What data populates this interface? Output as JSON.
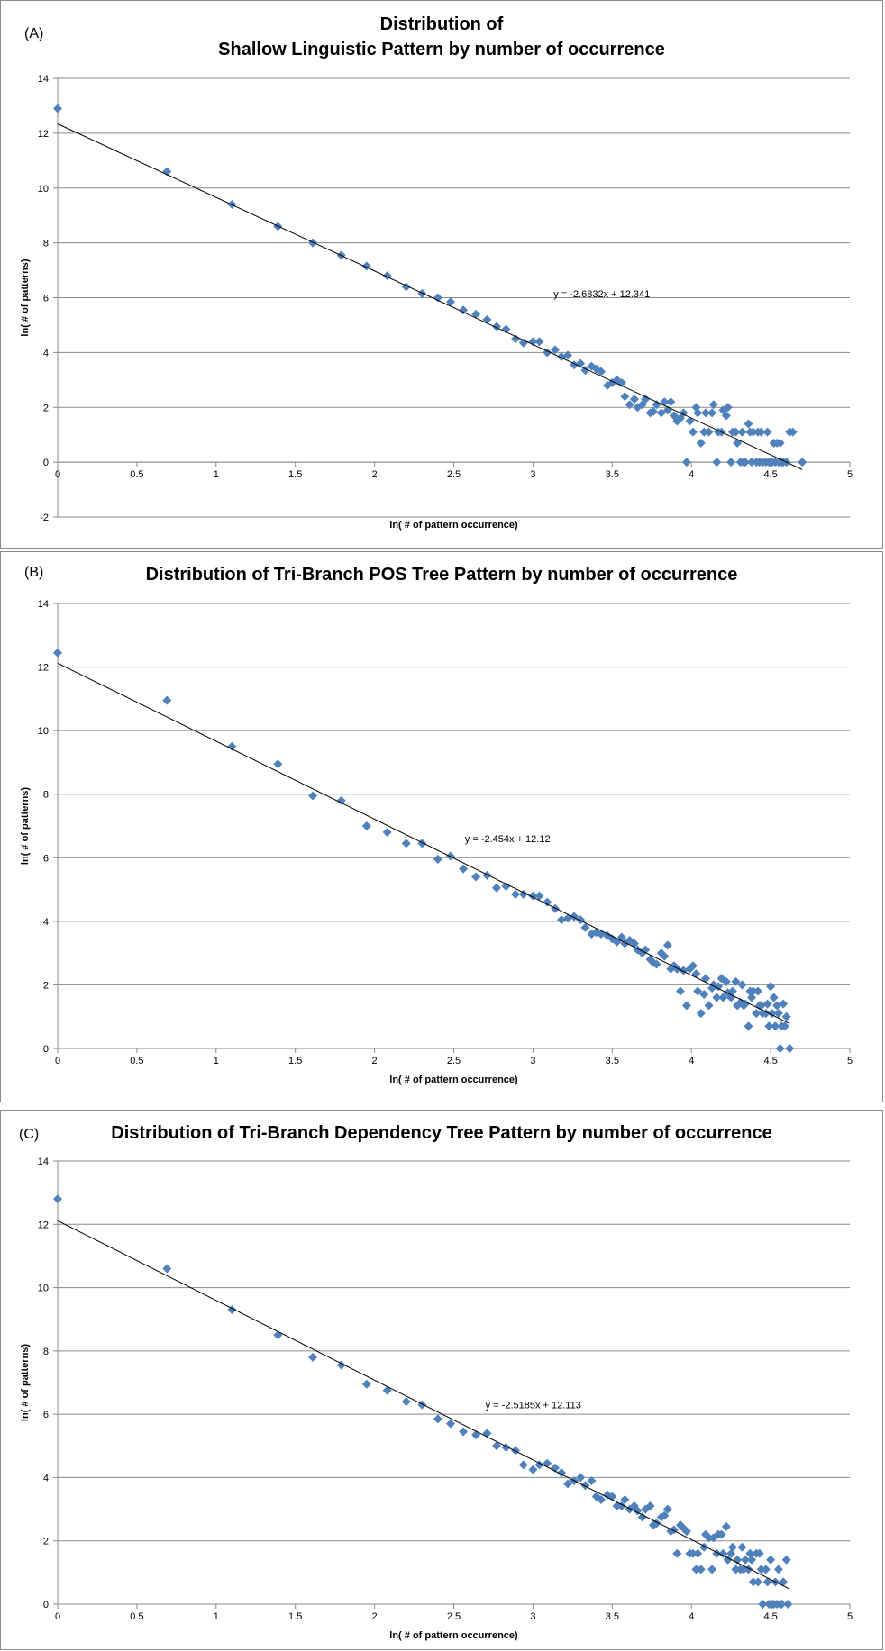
{
  "chart_data": [
    {
      "type": "scatter",
      "panel_label": "(A)",
      "title_lines": [
        "Distribution of",
        "Shallow Linguistic Pattern by number of occurrence"
      ],
      "xlabel": "ln( # of pattern occurrence)",
      "ylabel": "ln( # of patterns)",
      "xlim": [
        0,
        5
      ],
      "ylim": [
        -2,
        14
      ],
      "x_ticks": [
        "0",
        "0.5",
        "1",
        "1.5",
        "2",
        "2.5",
        "3",
        "3.5",
        "4",
        "4.5",
        "5"
      ],
      "y_ticks": [
        "-2",
        "0",
        "2",
        "4",
        "6",
        "8",
        "10",
        "12",
        "14"
      ],
      "grid": "horizontal",
      "marker_color": "#4f81bd",
      "trendline": {
        "slope": -2.6832,
        "intercept": 12.341,
        "x_range": [
          0,
          4.7
        ],
        "label": "y = -2.6832x + 12.341"
      },
      "points": [
        [
          0,
          12.9
        ],
        [
          0.69,
          10.6
        ],
        [
          1.1,
          9.4
        ],
        [
          1.39,
          8.6
        ],
        [
          1.61,
          8.0
        ],
        [
          1.79,
          7.55
        ],
        [
          1.95,
          7.15
        ],
        [
          2.08,
          6.8
        ],
        [
          2.2,
          6.4
        ],
        [
          2.3,
          6.15
        ],
        [
          2.4,
          6.0
        ],
        [
          2.48,
          5.85
        ],
        [
          2.56,
          5.55
        ],
        [
          2.64,
          5.4
        ],
        [
          2.71,
          5.2
        ],
        [
          2.77,
          4.95
        ],
        [
          2.83,
          4.85
        ],
        [
          2.89,
          4.5
        ],
        [
          2.94,
          4.35
        ],
        [
          3.0,
          4.4
        ],
        [
          3.04,
          4.4
        ],
        [
          3.09,
          4.0
        ],
        [
          3.14,
          4.1
        ],
        [
          3.18,
          3.85
        ],
        [
          3.22,
          3.9
        ],
        [
          3.26,
          3.55
        ],
        [
          3.3,
          3.6
        ],
        [
          3.33,
          3.35
        ],
        [
          3.37,
          3.5
        ],
        [
          3.4,
          3.4
        ],
        [
          3.43,
          3.3
        ],
        [
          3.47,
          2.8
        ],
        [
          3.5,
          2.9
        ],
        [
          3.53,
          3.0
        ],
        [
          3.56,
          2.9
        ],
        [
          3.58,
          2.4
        ],
        [
          3.61,
          2.1
        ],
        [
          3.64,
          2.3
        ],
        [
          3.66,
          2.0
        ],
        [
          3.69,
          2.1
        ],
        [
          3.71,
          2.3
        ],
        [
          3.74,
          1.8
        ],
        [
          3.76,
          1.85
        ],
        [
          3.78,
          2.1
        ],
        [
          3.81,
          1.8
        ],
        [
          3.83,
          2.2
        ],
        [
          3.85,
          1.9
        ],
        [
          3.87,
          2.2
        ],
        [
          3.89,
          1.7
        ],
        [
          3.91,
          1.5
        ],
        [
          3.93,
          1.6
        ],
        [
          3.95,
          1.8
        ],
        [
          3.97,
          0.0
        ],
        [
          3.99,
          1.5
        ],
        [
          4.01,
          1.1
        ],
        [
          4.03,
          2.0
        ],
        [
          4.04,
          1.8
        ],
        [
          4.06,
          0.7
        ],
        [
          4.08,
          1.1
        ],
        [
          4.09,
          1.8
        ],
        [
          4.11,
          1.1
        ],
        [
          4.13,
          1.8
        ],
        [
          4.14,
          2.1
        ],
        [
          4.16,
          0.0
        ],
        [
          4.17,
          1.1
        ],
        [
          4.19,
          1.1
        ],
        [
          4.2,
          1.9
        ],
        [
          4.22,
          1.7
        ],
        [
          4.23,
          2.0
        ],
        [
          4.25,
          0.0
        ],
        [
          4.26,
          1.1
        ],
        [
          4.28,
          1.1
        ],
        [
          4.29,
          0.7
        ],
        [
          4.31,
          0.0
        ],
        [
          4.32,
          1.1
        ],
        [
          4.33,
          0.0
        ],
        [
          4.34,
          0.0
        ],
        [
          4.36,
          1.4
        ],
        [
          4.37,
          1.1
        ],
        [
          4.38,
          0.0
        ],
        [
          4.39,
          1.1
        ],
        [
          4.41,
          0.0
        ],
        [
          4.42,
          1.1
        ],
        [
          4.43,
          0.0
        ],
        [
          4.44,
          1.1
        ],
        [
          4.45,
          0.0
        ],
        [
          4.47,
          0.0
        ],
        [
          4.48,
          1.1
        ],
        [
          4.49,
          0.0
        ],
        [
          4.5,
          0.0
        ],
        [
          4.51,
          0.0
        ],
        [
          4.52,
          0.7
        ],
        [
          4.53,
          0.0
        ],
        [
          4.54,
          0.7
        ],
        [
          4.55,
          0.0
        ],
        [
          4.56,
          0.7
        ],
        [
          4.57,
          0.0
        ],
        [
          4.58,
          0.0
        ],
        [
          4.6,
          0.0
        ],
        [
          4.62,
          1.1
        ],
        [
          4.64,
          1.1
        ],
        [
          4.7,
          0.0
        ]
      ]
    },
    {
      "type": "scatter",
      "panel_label": "(B)",
      "title_lines": [
        "Distribution of Tri-Branch POS Tree Pattern by number of occurrence"
      ],
      "xlabel": "ln( # of pattern occurrence)",
      "ylabel": "ln( # of patterns)",
      "xlim": [
        0,
        5
      ],
      "ylim": [
        0,
        14
      ],
      "x_ticks": [
        "0",
        "0.5",
        "1",
        "1.5",
        "2",
        "2.5",
        "3",
        "3.5",
        "4",
        "4.5",
        "5"
      ],
      "y_ticks": [
        "0",
        "2",
        "4",
        "6",
        "8",
        "10",
        "12",
        "14"
      ],
      "grid": "horizontal",
      "marker_color": "#4f81bd",
      "trendline": {
        "slope": -2.454,
        "intercept": 12.12,
        "x_range": [
          0,
          4.62
        ],
        "label": "y = -2.454x + 12.12"
      },
      "points": [
        [
          0,
          12.45
        ],
        [
          0.69,
          10.95
        ],
        [
          1.1,
          9.5
        ],
        [
          1.39,
          8.95
        ],
        [
          1.61,
          7.95
        ],
        [
          1.79,
          7.8
        ],
        [
          1.95,
          7.0
        ],
        [
          2.08,
          6.8
        ],
        [
          2.2,
          6.45
        ],
        [
          2.3,
          6.45
        ],
        [
          2.4,
          5.95
        ],
        [
          2.48,
          6.05
        ],
        [
          2.56,
          5.65
        ],
        [
          2.64,
          5.4
        ],
        [
          2.71,
          5.45
        ],
        [
          2.77,
          5.05
        ],
        [
          2.83,
          5.1
        ],
        [
          2.89,
          4.85
        ],
        [
          2.94,
          4.85
        ],
        [
          3.0,
          4.8
        ],
        [
          3.04,
          4.8
        ],
        [
          3.09,
          4.6
        ],
        [
          3.14,
          4.4
        ],
        [
          3.18,
          4.05
        ],
        [
          3.22,
          4.1
        ],
        [
          3.26,
          4.15
        ],
        [
          3.3,
          4.05
        ],
        [
          3.33,
          3.8
        ],
        [
          3.37,
          3.6
        ],
        [
          3.4,
          3.65
        ],
        [
          3.43,
          3.6
        ],
        [
          3.47,
          3.55
        ],
        [
          3.5,
          3.45
        ],
        [
          3.53,
          3.35
        ],
        [
          3.56,
          3.5
        ],
        [
          3.58,
          3.3
        ],
        [
          3.61,
          3.4
        ],
        [
          3.64,
          3.3
        ],
        [
          3.66,
          3.1
        ],
        [
          3.69,
          3.0
        ],
        [
          3.71,
          3.1
        ],
        [
          3.74,
          2.8
        ],
        [
          3.76,
          2.7
        ],
        [
          3.78,
          2.65
        ],
        [
          3.81,
          3.0
        ],
        [
          3.83,
          2.9
        ],
        [
          3.85,
          3.25
        ],
        [
          3.87,
          2.5
        ],
        [
          3.89,
          2.6
        ],
        [
          3.91,
          2.5
        ],
        [
          3.93,
          1.8
        ],
        [
          3.95,
          2.45
        ],
        [
          3.97,
          1.35
        ],
        [
          3.99,
          2.5
        ],
        [
          4.01,
          2.6
        ],
        [
          4.03,
          2.35
        ],
        [
          4.04,
          1.8
        ],
        [
          4.06,
          1.1
        ],
        [
          4.08,
          1.7
        ],
        [
          4.09,
          2.2
        ],
        [
          4.11,
          1.35
        ],
        [
          4.13,
          1.9
        ],
        [
          4.14,
          2.0
        ],
        [
          4.16,
          1.6
        ],
        [
          4.17,
          1.95
        ],
        [
          4.19,
          2.2
        ],
        [
          4.2,
          1.6
        ],
        [
          4.22,
          2.1
        ],
        [
          4.23,
          1.75
        ],
        [
          4.25,
          1.6
        ],
        [
          4.26,
          1.8
        ],
        [
          4.28,
          2.1
        ],
        [
          4.29,
          1.35
        ],
        [
          4.31,
          1.45
        ],
        [
          4.32,
          2.0
        ],
        [
          4.33,
          1.35
        ],
        [
          4.34,
          1.4
        ],
        [
          4.36,
          0.7
        ],
        [
          4.37,
          1.8
        ],
        [
          4.38,
          1.6
        ],
        [
          4.39,
          1.8
        ],
        [
          4.41,
          1.1
        ],
        [
          4.42,
          1.8
        ],
        [
          4.43,
          1.35
        ],
        [
          4.44,
          1.35
        ],
        [
          4.45,
          1.1
        ],
        [
          4.47,
          1.1
        ],
        [
          4.48,
          1.4
        ],
        [
          4.49,
          0.7
        ],
        [
          4.5,
          1.95
        ],
        [
          4.51,
          1.1
        ],
        [
          4.52,
          1.6
        ],
        [
          4.53,
          0.7
        ],
        [
          4.54,
          1.35
        ],
        [
          4.55,
          1.1
        ],
        [
          4.56,
          0.0
        ],
        [
          4.57,
          0.7
        ],
        [
          4.58,
          1.4
        ],
        [
          4.59,
          0.7
        ],
        [
          4.6,
          1.0
        ],
        [
          4.62,
          0.0
        ]
      ]
    },
    {
      "type": "scatter",
      "panel_label": "(C)",
      "title_lines": [
        "Distribution of Tri-Branch Dependency Tree Pattern by number of occurrence"
      ],
      "xlabel": "ln( # of pattern occurrence)",
      "ylabel": "ln( # of patterns)",
      "xlim": [
        0,
        5
      ],
      "ylim": [
        0,
        14
      ],
      "x_ticks": [
        "0",
        "0.5",
        "1",
        "1.5",
        "2",
        "2.5",
        "3",
        "3.5",
        "4",
        "4.5",
        "5"
      ],
      "y_ticks": [
        "0",
        "2",
        "4",
        "6",
        "8",
        "10",
        "12",
        "14"
      ],
      "grid": "horizontal",
      "marker_color": "#4f81bd",
      "trendline": {
        "slope": -2.5185,
        "intercept": 12.113,
        "x_range": [
          0,
          4.62
        ],
        "label": "y = -2.5185x + 12.113"
      },
      "points": [
        [
          0,
          12.8
        ],
        [
          0.69,
          10.6
        ],
        [
          1.1,
          9.3
        ],
        [
          1.39,
          8.5
        ],
        [
          1.61,
          7.8
        ],
        [
          1.79,
          7.55
        ],
        [
          1.95,
          6.95
        ],
        [
          2.08,
          6.75
        ],
        [
          2.2,
          6.4
        ],
        [
          2.3,
          6.3
        ],
        [
          2.4,
          5.85
        ],
        [
          2.48,
          5.7
        ],
        [
          2.56,
          5.45
        ],
        [
          2.64,
          5.35
        ],
        [
          2.71,
          5.4
        ],
        [
          2.77,
          5.0
        ],
        [
          2.83,
          4.95
        ],
        [
          2.89,
          4.85
        ],
        [
          2.94,
          4.4
        ],
        [
          3.0,
          4.25
        ],
        [
          3.04,
          4.4
        ],
        [
          3.09,
          4.45
        ],
        [
          3.14,
          4.3
        ],
        [
          3.18,
          4.15
        ],
        [
          3.22,
          3.8
        ],
        [
          3.26,
          3.9
        ],
        [
          3.3,
          4.0
        ],
        [
          3.33,
          3.75
        ],
        [
          3.37,
          3.9
        ],
        [
          3.4,
          3.4
        ],
        [
          3.43,
          3.3
        ],
        [
          3.47,
          3.45
        ],
        [
          3.5,
          3.4
        ],
        [
          3.53,
          3.1
        ],
        [
          3.56,
          3.1
        ],
        [
          3.58,
          3.3
        ],
        [
          3.61,
          3.0
        ],
        [
          3.64,
          3.1
        ],
        [
          3.66,
          2.95
        ],
        [
          3.69,
          2.75
        ],
        [
          3.71,
          3.0
        ],
        [
          3.74,
          3.1
        ],
        [
          3.76,
          2.5
        ],
        [
          3.78,
          2.55
        ],
        [
          3.81,
          2.75
        ],
        [
          3.83,
          2.8
        ],
        [
          3.85,
          3.0
        ],
        [
          3.87,
          2.3
        ],
        [
          3.89,
          2.35
        ],
        [
          3.91,
          1.6
        ],
        [
          3.93,
          2.5
        ],
        [
          3.95,
          2.4
        ],
        [
          3.97,
          2.3
        ],
        [
          3.99,
          1.6
        ],
        [
          4.01,
          1.6
        ],
        [
          4.03,
          1.1
        ],
        [
          4.04,
          1.6
        ],
        [
          4.06,
          1.1
        ],
        [
          4.08,
          1.8
        ],
        [
          4.09,
          2.2
        ],
        [
          4.11,
          2.1
        ],
        [
          4.13,
          1.1
        ],
        [
          4.14,
          2.1
        ],
        [
          4.16,
          1.6
        ],
        [
          4.17,
          2.2
        ],
        [
          4.19,
          2.2
        ],
        [
          4.2,
          1.6
        ],
        [
          4.22,
          2.45
        ],
        [
          4.23,
          1.4
        ],
        [
          4.25,
          1.6
        ],
        [
          4.26,
          1.8
        ],
        [
          4.28,
          1.1
        ],
        [
          4.29,
          1.4
        ],
        [
          4.31,
          1.1
        ],
        [
          4.32,
          1.8
        ],
        [
          4.33,
          1.1
        ],
        [
          4.34,
          1.4
        ],
        [
          4.36,
          1.1
        ],
        [
          4.37,
          1.6
        ],
        [
          4.38,
          1.4
        ],
        [
          4.39,
          0.7
        ],
        [
          4.41,
          1.6
        ],
        [
          4.42,
          0.7
        ],
        [
          4.43,
          1.6
        ],
        [
          4.44,
          1.1
        ],
        [
          4.45,
          0.0
        ],
        [
          4.47,
          1.1
        ],
        [
          4.48,
          0.7
        ],
        [
          4.49,
          0.0
        ],
        [
          4.5,
          1.4
        ],
        [
          4.51,
          0.0
        ],
        [
          4.52,
          0.0
        ],
        [
          4.53,
          0.7
        ],
        [
          4.54,
          0.0
        ],
        [
          4.55,
          1.1
        ],
        [
          4.56,
          0.0
        ],
        [
          4.57,
          0.0
        ],
        [
          4.58,
          0.7
        ],
        [
          4.6,
          1.4
        ],
        [
          4.61,
          0.0
        ]
      ]
    }
  ]
}
